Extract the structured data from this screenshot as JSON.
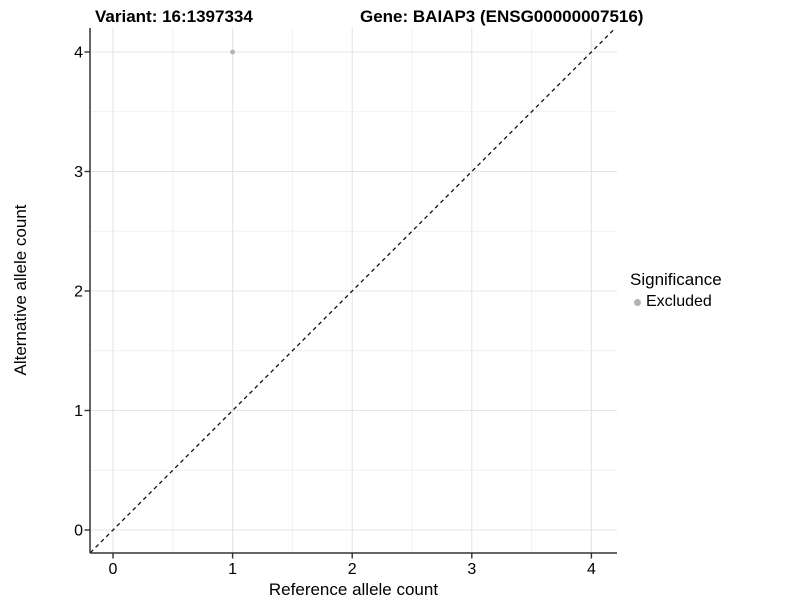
{
  "header": {
    "variant_title": "Variant: 16:1397334",
    "gene_title": "Gene: BAIAP3 (ENSG00000007516)"
  },
  "chart_data": {
    "type": "scatter",
    "titles": [
      "Variant: 16:1397334",
      "Gene: BAIAP3 (ENSG00000007516)"
    ],
    "xlabel": "Reference allele count",
    "ylabel": "Alternative allele count",
    "xlim": [
      -0.2,
      4.2
    ],
    "ylim": [
      -0.2,
      4.2
    ],
    "xticks": [
      0,
      1,
      2,
      3,
      4
    ],
    "yticks": [
      0,
      1,
      2,
      3,
      4
    ],
    "xtick_labels": [
      "0",
      "1",
      "2",
      "3",
      "4"
    ],
    "ytick_labels": [
      "0",
      "1",
      "2",
      "3",
      "4"
    ],
    "grid": "major+minor",
    "legend_position": "right",
    "series": [
      {
        "name": "Excluded",
        "color": "#b3b3b3",
        "points": [
          {
            "x": 1,
            "y": 4
          }
        ]
      }
    ],
    "reference_line": {
      "type": "identity",
      "slope": 1,
      "intercept": 0,
      "style": "dashed",
      "color": "#111111"
    },
    "style": {
      "background": "#ffffff",
      "grid_major": "#e4e4e4",
      "grid_minor": "#f1f1f1",
      "axis_color": "#333333",
      "point_color": "#b3b3b3",
      "point_radius": 2.4
    }
  },
  "legend": {
    "title": "Significance",
    "items": [
      {
        "label": "Excluded",
        "marker_color": "#b3b3b3"
      }
    ]
  }
}
